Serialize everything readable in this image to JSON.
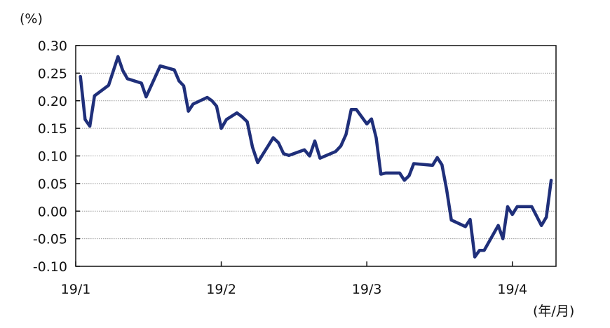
{
  "chart_data": {
    "type": "line",
    "title": "",
    "ylabel": "(%)",
    "xlabel": "(年/月)",
    "ylim": [
      -0.1,
      0.3
    ],
    "yticks": [
      "0.30",
      "0.25",
      "0.20",
      "0.15",
      "0.10",
      "0.05",
      "0.00",
      "-0.05",
      "-0.10"
    ],
    "ytick_values": [
      0.3,
      0.25,
      0.2,
      0.15,
      0.1,
      0.05,
      0.0,
      -0.05,
      -0.1
    ],
    "xlim": [
      "2019-01-01",
      "2019-04-10"
    ],
    "xticks": [
      {
        "label": "19/1",
        "date": "2019-01-01"
      },
      {
        "label": "19/2",
        "date": "2019-02-01"
      },
      {
        "label": "19/3",
        "date": "2019-03-01"
      },
      {
        "label": "19/4",
        "date": "2019-04-01"
      }
    ],
    "grid": true,
    "line_color": "#1f2f7a",
    "series": [
      {
        "x": [
          "2019-01-02",
          "2019-01-03",
          "2019-01-04",
          "2019-01-05",
          "2019-01-08",
          "2019-01-10",
          "2019-01-11",
          "2019-01-12",
          "2019-01-15",
          "2019-01-16",
          "2019-01-19",
          "2019-01-22",
          "2019-01-23",
          "2019-01-24",
          "2019-01-25",
          "2019-01-26",
          "2019-01-29",
          "2019-01-30",
          "2019-01-31",
          "2019-02-01",
          "2019-02-02",
          "2019-02-04",
          "2019-02-05",
          "2019-02-06",
          "2019-02-07",
          "2019-02-08",
          "2019-02-11",
          "2019-02-12",
          "2019-02-13",
          "2019-02-14",
          "2019-02-17",
          "2019-02-18",
          "2019-02-19",
          "2019-02-20",
          "2019-02-23",
          "2019-02-24",
          "2019-02-25",
          "2019-02-26",
          "2019-02-27",
          "2019-03-01",
          "2019-03-02",
          "2019-03-03",
          "2019-03-04",
          "2019-03-05",
          "2019-03-08",
          "2019-03-09",
          "2019-03-10",
          "2019-03-11",
          "2019-03-15",
          "2019-03-16",
          "2019-03-17",
          "2019-03-18",
          "2019-03-19",
          "2019-03-22",
          "2019-03-23",
          "2019-03-24",
          "2019-03-25",
          "2019-03-26",
          "2019-03-29",
          "2019-03-30",
          "2019-03-31",
          "2019-04-01",
          "2019-04-02",
          "2019-04-05",
          "2019-04-07",
          "2019-04-08",
          "2019-04-09"
        ],
        "y": [
          0.244,
          0.166,
          0.154,
          0.209,
          0.228,
          0.28,
          0.255,
          0.24,
          0.232,
          0.207,
          0.263,
          0.256,
          0.236,
          0.227,
          0.181,
          0.194,
          0.206,
          0.2,
          0.19,
          0.15,
          0.166,
          0.178,
          0.171,
          0.162,
          0.116,
          0.088,
          0.133,
          0.124,
          0.104,
          0.101,
          0.111,
          0.1,
          0.127,
          0.096,
          0.108,
          0.118,
          0.139,
          0.184,
          0.184,
          0.158,
          0.167,
          0.133,
          0.067,
          0.069,
          0.069,
          0.056,
          0.064,
          0.086,
          0.083,
          0.097,
          0.084,
          0.039,
          -0.016,
          -0.028,
          -0.015,
          -0.083,
          -0.071,
          -0.071,
          -0.026,
          -0.05,
          0.008,
          -0.006,
          0.008,
          0.008,
          -0.026,
          -0.011,
          0.056
        ]
      }
    ]
  }
}
